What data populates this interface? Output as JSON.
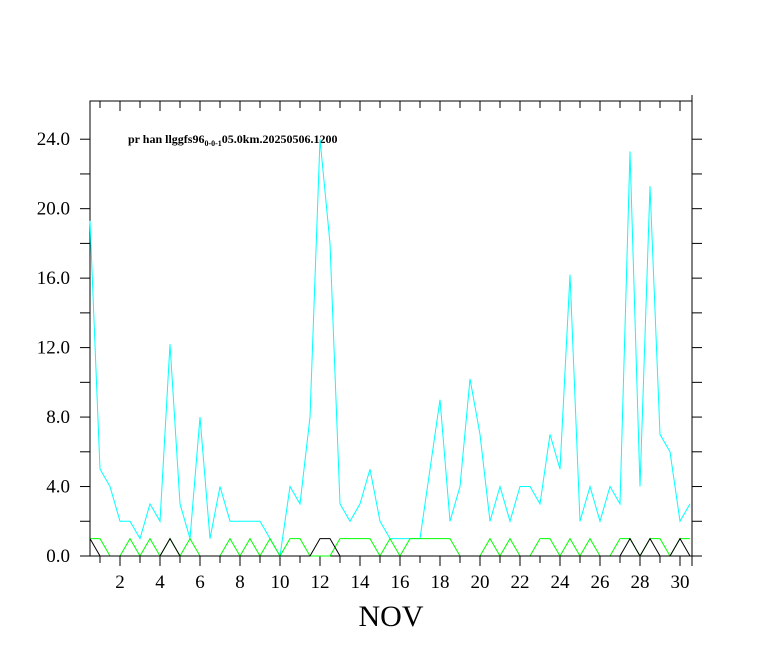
{
  "chart_data": {
    "type": "line",
    "title": "pr han llggfs96",
    "title_subscript": "0-0-1",
    "title_suffix": "05.0km.20250506.1200",
    "xlabel": "NOV",
    "x": [
      0.5,
      1,
      1.5,
      2,
      2.5,
      3,
      3.5,
      4,
      4.5,
      5,
      5.5,
      6,
      6.5,
      7,
      7.5,
      8,
      8.5,
      9,
      9.5,
      10,
      10.5,
      11,
      11.5,
      12,
      12.5,
      13,
      13.5,
      14,
      14.5,
      15,
      15.5,
      16,
      16.5,
      17,
      17.5,
      18,
      18.5,
      19,
      19.5,
      20,
      20.5,
      21,
      21.5,
      22,
      22.5,
      23,
      23.5,
      24,
      24.5,
      25,
      25.5,
      26,
      26.5,
      27,
      27.5,
      28,
      28.5,
      29,
      29.5,
      30,
      30.5
    ],
    "series": [
      {
        "color": "#00ffff",
        "values": [
          19.3,
          5,
          4,
          2,
          2,
          1,
          3,
          2,
          12.2,
          3,
          1,
          8,
          1,
          4,
          2,
          2,
          2,
          2,
          1,
          0,
          4,
          3,
          8,
          24,
          18,
          3,
          2,
          3,
          5,
          2,
          1,
          1,
          1,
          1,
          5,
          9,
          2,
          4,
          10.2,
          7,
          2,
          4,
          2,
          4,
          4,
          3,
          7,
          5,
          16.2,
          2,
          4,
          2,
          4,
          3,
          23.3,
          4,
          21.3,
          7,
          6,
          2,
          3
        ]
      },
      {
        "color": "#00ff00",
        "values": [
          1,
          1,
          0,
          0,
          1,
          0,
          1,
          0,
          1,
          0,
          1,
          0,
          0,
          0,
          1,
          0,
          1,
          0,
          1,
          0,
          1,
          1,
          0,
          0,
          0,
          1,
          1,
          1,
          1,
          0,
          1,
          0,
          1,
          1,
          1,
          1,
          1,
          0,
          0,
          0,
          1,
          0,
          1,
          0,
          0,
          1,
          1,
          0,
          1,
          0,
          1,
          0,
          0,
          1,
          1,
          0,
          1,
          1,
          0,
          1,
          1
        ]
      },
      {
        "color": "#000000",
        "values": [
          1,
          0,
          0,
          0,
          0,
          0,
          0,
          0,
          1,
          0,
          0,
          0,
          0,
          0,
          0,
          0,
          0,
          0,
          0,
          0,
          0,
          0,
          0,
          1,
          1,
          0,
          0,
          0,
          0,
          0,
          0,
          0,
          0,
          0,
          0,
          0,
          0,
          0,
          0,
          0,
          0,
          0,
          0,
          0,
          0,
          0,
          0,
          0,
          0,
          0,
          0,
          0,
          0,
          0,
          1,
          0,
          1,
          0,
          0,
          1,
          0
        ]
      }
    ],
    "xlim": [
      0.5,
      30.6
    ],
    "ylim": [
      0,
      26.2
    ],
    "xticks": [
      2,
      4,
      6,
      8,
      10,
      12,
      14,
      16,
      18,
      20,
      22,
      24,
      26,
      28,
      30
    ],
    "yticks": [
      {
        "value": 0,
        "label": "0.0"
      },
      {
        "value": 4,
        "label": "4.0"
      },
      {
        "value": 8,
        "label": "8.0"
      },
      {
        "value": 12,
        "label": "12.0"
      },
      {
        "value": 16,
        "label": "16.0"
      },
      {
        "value": 20,
        "label": "20.0"
      },
      {
        "value": 24,
        "label": "24.0"
      }
    ]
  }
}
